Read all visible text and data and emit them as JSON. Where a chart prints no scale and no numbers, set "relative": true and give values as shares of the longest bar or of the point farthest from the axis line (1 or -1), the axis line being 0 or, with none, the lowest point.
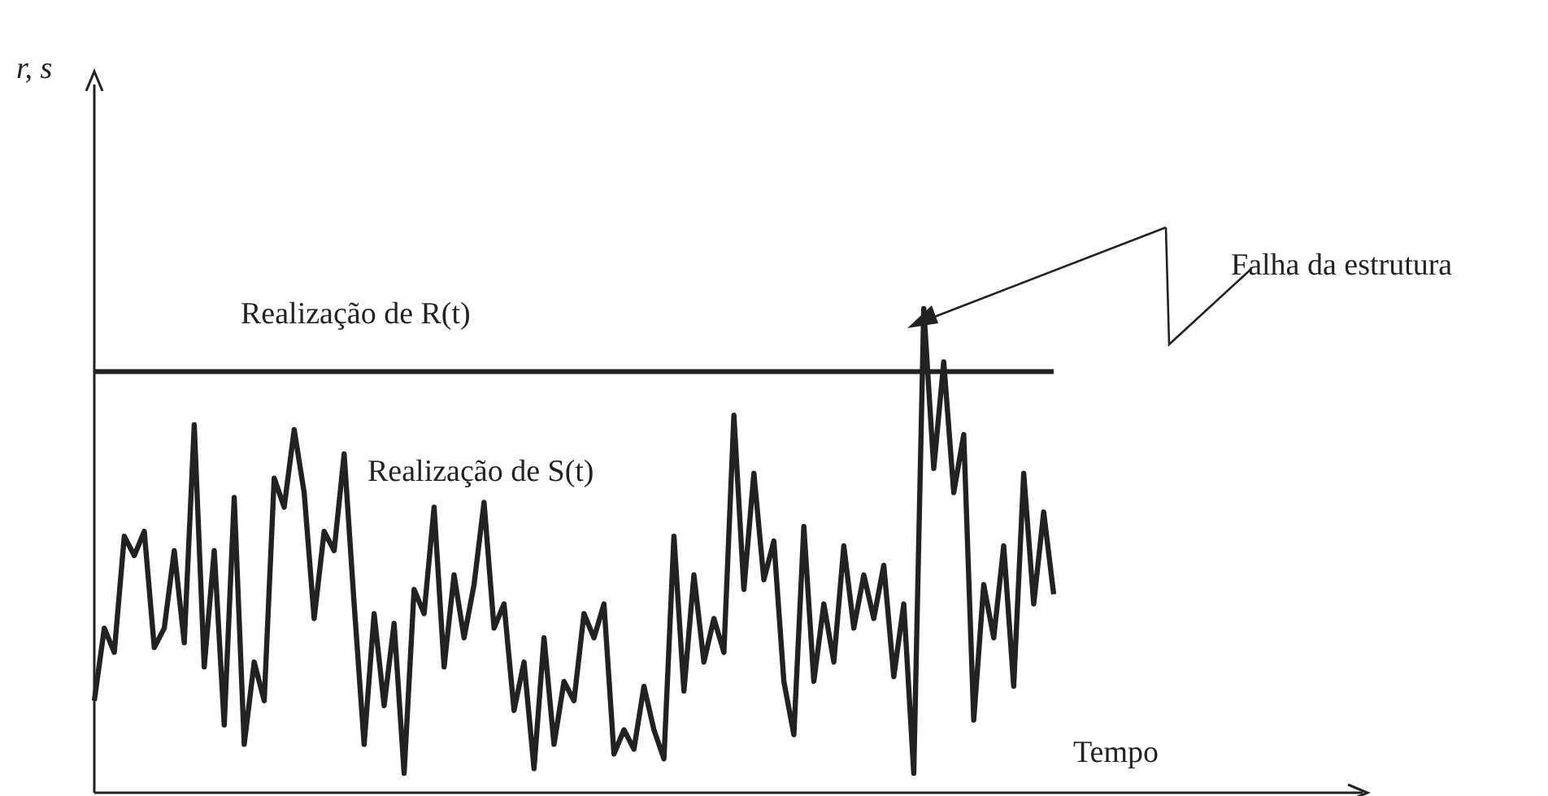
{
  "chart_data": {
    "type": "line",
    "relative": true,
    "xlabel": "Tempo",
    "legend": false,
    "marker": "none",
    "line_style": "solid",
    "categories": [
      null,
      null,
      null,
      null,
      null,
      null,
      null,
      null,
      null,
      null,
      null,
      null,
      null,
      null,
      null,
      null,
      null,
      null,
      null,
      null,
      null,
      null,
      null,
      null,
      null,
      null,
      null,
      null,
      null,
      null,
      null,
      null,
      null,
      null,
      null,
      null,
      null,
      null,
      null,
      null,
      null,
      null,
      null,
      null,
      null,
      null,
      null,
      null,
      null,
      null,
      null,
      null,
      null,
      null,
      null,
      null,
      null,
      null,
      null,
      null,
      null,
      null,
      null,
      null,
      null,
      null,
      null,
      null,
      null,
      null,
      null,
      null,
      null,
      null,
      null,
      null,
      null,
      null,
      null,
      null,
      null,
      null,
      null,
      null,
      null,
      null,
      null,
      null,
      null,
      null,
      null,
      null,
      null,
      null,
      null,
      null,
      null
    ],
    "series": [
      {
        "name": "Realização de R(t)",
        "color": "#222222",
        "values": [
          0.87,
          0.87,
          0.87,
          0.87,
          0.87,
          0.87,
          0.87,
          0.87,
          0.87,
          0.87,
          0.87,
          0.87,
          0.87,
          0.87,
          0.87,
          0.87,
          0.87,
          0.87,
          0.87,
          0.87,
          0.87,
          0.87,
          0.87,
          0.87,
          0.87,
          0.87,
          0.87,
          0.87,
          0.87,
          0.87,
          0.87,
          0.87,
          0.87,
          0.87,
          0.87,
          0.87,
          0.87,
          0.87,
          0.87,
          0.87,
          0.87,
          0.87,
          0.87,
          0.87,
          0.87,
          0.87,
          0.87,
          0.87,
          0.87,
          0.87,
          0.87,
          0.87,
          0.87,
          0.87,
          0.87,
          0.87,
          0.87,
          0.87,
          0.87,
          0.87,
          0.87,
          0.87,
          0.87,
          0.87,
          0.87,
          0.87,
          0.87,
          0.87,
          0.87,
          0.87,
          0.87,
          0.87,
          0.87,
          0.87,
          0.87,
          0.87,
          0.87,
          0.87,
          0.87,
          0.87,
          0.87,
          0.87,
          0.87,
          0.87,
          0.87,
          0.87,
          0.87,
          0.87,
          0.87,
          0.87,
          0.87,
          0.87,
          0.87,
          0.87,
          0.87,
          0.87,
          0.87
        ]
      },
      {
        "name": "Realização de S(t)",
        "color": "#222222",
        "values": [
          0.19,
          0.34,
          0.29,
          0.53,
          0.49,
          0.54,
          0.3,
          0.34,
          0.5,
          0.31,
          0.76,
          0.26,
          0.5,
          0.14,
          0.61,
          0.1,
          0.27,
          0.19,
          0.65,
          0.59,
          0.75,
          0.62,
          0.36,
          0.54,
          0.5,
          0.7,
          0.39,
          0.1,
          0.37,
          0.18,
          0.35,
          0.04,
          0.42,
          0.37,
          0.59,
          0.26,
          0.45,
          0.32,
          0.43,
          0.6,
          0.34,
          0.39,
          0.17,
          0.27,
          0.05,
          0.32,
          0.1,
          0.23,
          0.19,
          0.37,
          0.32,
          0.39,
          0.08,
          0.13,
          0.09,
          0.22,
          0.13,
          0.07,
          0.53,
          0.21,
          0.45,
          0.27,
          0.36,
          0.29,
          0.78,
          0.42,
          0.66,
          0.44,
          0.52,
          0.23,
          0.12,
          0.55,
          0.23,
          0.39,
          0.27,
          0.51,
          0.34,
          0.45,
          0.36,
          0.47,
          0.24,
          0.39,
          0.04,
          1,
          0.67,
          0.89,
          0.62,
          0.74,
          0.15,
          0.43,
          0.32,
          0.51,
          0.22,
          0.66,
          0.39,
          0.58,
          0.41
        ]
      }
    ],
    "annotations": [
      "r, s",
      "Falha da estrutura"
    ]
  }
}
